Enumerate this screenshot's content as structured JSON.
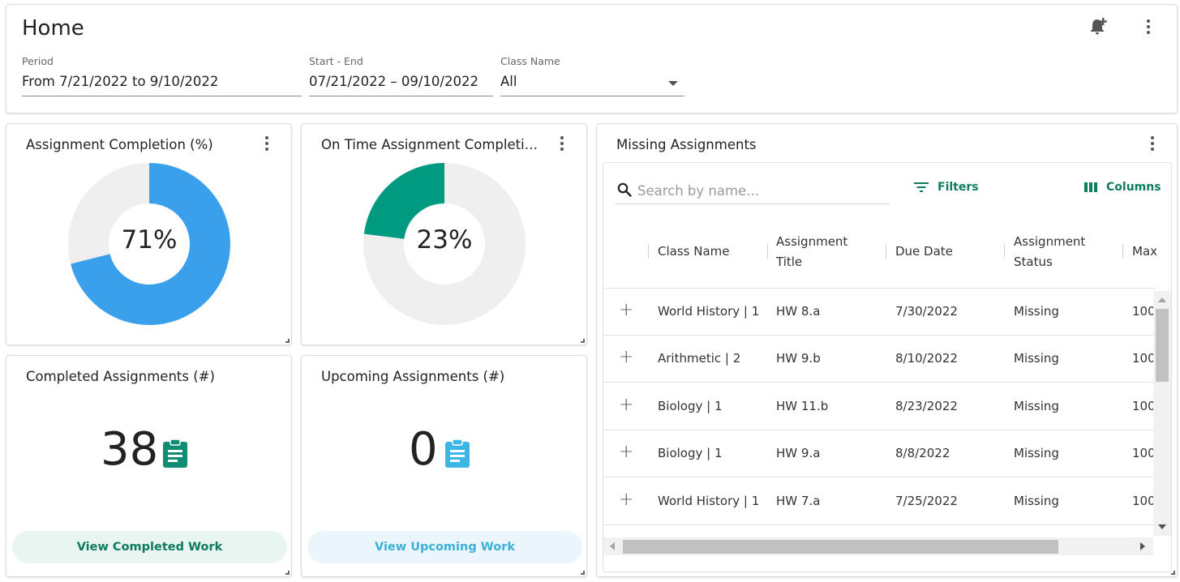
{
  "header": {
    "title": "Home",
    "period": {
      "label": "Period",
      "value": "From 7/21/2022 to 9/10/2022"
    },
    "start_end": {
      "label": "Start - End",
      "value": "07/21/2022 – 09/10/2022"
    },
    "class_name": {
      "label": "Class Name",
      "value": "All"
    }
  },
  "cards": {
    "completion": {
      "title": "Assignment Completion (%)",
      "label": "71%",
      "percent": 71,
      "color": "#3aa0eb"
    },
    "on_time": {
      "title": "On Time Assignment Completion (%)",
      "label": "23%",
      "percent": 23,
      "color": "#009a80"
    },
    "completed": {
      "title": "Completed Assignments (#)",
      "count": "38",
      "button": "View Completed Work",
      "icon_color": "#0e8d74"
    },
    "upcoming": {
      "title": "Upcoming Assignments (#)",
      "count": "0",
      "button": "View Upcoming Work",
      "icon_color": "#3bb6e6"
    }
  },
  "missing": {
    "title": "Missing Assignments",
    "search_placeholder": "Search by name...",
    "filters_label": "Filters",
    "columns_label": "Columns",
    "columns": {
      "class_name": "Class Name",
      "assignment_title_1": "Assignment",
      "assignment_title_2": "Title",
      "due_date": "Due Date",
      "status_1": "Assignment",
      "status_2": "Status",
      "max_points": "Max Po"
    },
    "rows": [
      {
        "class_name": "World History | 1",
        "title": "HW 8.a",
        "due": "7/30/2022",
        "status": "Missing",
        "max": "100"
      },
      {
        "class_name": "Arithmetic | 2",
        "title": "HW 9.b",
        "due": "8/10/2022",
        "status": "Missing",
        "max": "100"
      },
      {
        "class_name": "Biology | 1",
        "title": "HW 11.b",
        "due": "8/23/2022",
        "status": "Missing",
        "max": "100"
      },
      {
        "class_name": "Biology | 1",
        "title": "HW 9.a",
        "due": "8/8/2022",
        "status": "Missing",
        "max": "100"
      },
      {
        "class_name": "World History | 1",
        "title": "HW 7.a",
        "due": "7/25/2022",
        "status": "Missing",
        "max": "100"
      }
    ]
  }
}
